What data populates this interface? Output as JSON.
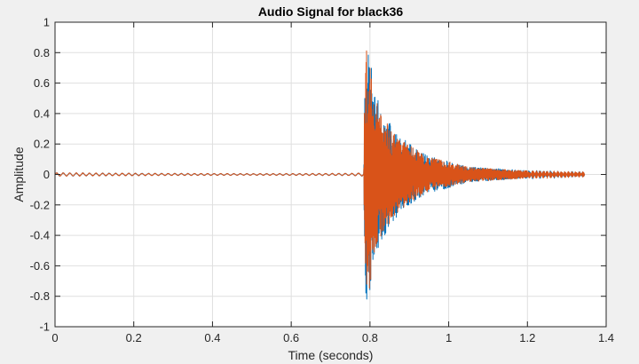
{
  "chart_data": {
    "type": "line",
    "title": "Audio Signal for black36",
    "xlabel": "Time (seconds)",
    "ylabel": "Amplitude",
    "xlim": [
      0,
      1.4
    ],
    "ylim": [
      -1,
      1
    ],
    "xticks": [
      "0",
      "0.2",
      "0.4",
      "0.6",
      "0.8",
      "1",
      "1.2",
      "1.4"
    ],
    "yticks": [
      "1",
      "0.8",
      "0.6",
      "0.4",
      "0.2",
      "0",
      "-0.2",
      "-0.4",
      "-0.6",
      "-0.8",
      "-1"
    ],
    "grid": true,
    "duration": 1.345,
    "onset": 0.785,
    "series": [
      {
        "color": "#0072bd",
        "peaks": [
          {
            "t": 0.0,
            "a": 0.012
          },
          {
            "t": 0.25,
            "a": 0.008
          },
          {
            "t": 0.5,
            "a": 0.006
          },
          {
            "t": 0.75,
            "a": 0.008
          },
          {
            "t": 0.784,
            "a": 0.012
          },
          {
            "t": 0.786,
            "a": 0.5
          },
          {
            "t": 0.79,
            "a": 0.85
          },
          {
            "t": 0.8,
            "a": 0.8
          },
          {
            "t": 0.81,
            "a": 0.55
          },
          {
            "t": 0.83,
            "a": 0.43
          },
          {
            "t": 0.86,
            "a": 0.3
          },
          {
            "t": 0.9,
            "a": 0.2
          },
          {
            "t": 0.95,
            "a": 0.12
          },
          {
            "t": 1.0,
            "a": 0.09
          },
          {
            "t": 1.05,
            "a": 0.05
          },
          {
            "t": 1.2,
            "a": 0.025
          },
          {
            "t": 1.345,
            "a": 0.015
          }
        ]
      },
      {
        "color": "#d95319",
        "peaks": [
          {
            "t": 0.0,
            "a": 0.012
          },
          {
            "t": 0.25,
            "a": 0.008
          },
          {
            "t": 0.5,
            "a": 0.006
          },
          {
            "t": 0.75,
            "a": 0.008
          },
          {
            "t": 0.784,
            "a": 0.012
          },
          {
            "t": 0.786,
            "a": 0.48
          },
          {
            "t": 0.79,
            "a": 0.82
          },
          {
            "t": 0.8,
            "a": 0.78
          },
          {
            "t": 0.81,
            "a": 0.52
          },
          {
            "t": 0.83,
            "a": 0.4
          },
          {
            "t": 0.86,
            "a": 0.28
          },
          {
            "t": 0.9,
            "a": 0.19
          },
          {
            "t": 0.95,
            "a": 0.11
          },
          {
            "t": 1.0,
            "a": 0.085
          },
          {
            "t": 1.05,
            "a": 0.048
          },
          {
            "t": 1.2,
            "a": 0.024
          },
          {
            "t": 1.345,
            "a": 0.015
          }
        ]
      }
    ]
  }
}
